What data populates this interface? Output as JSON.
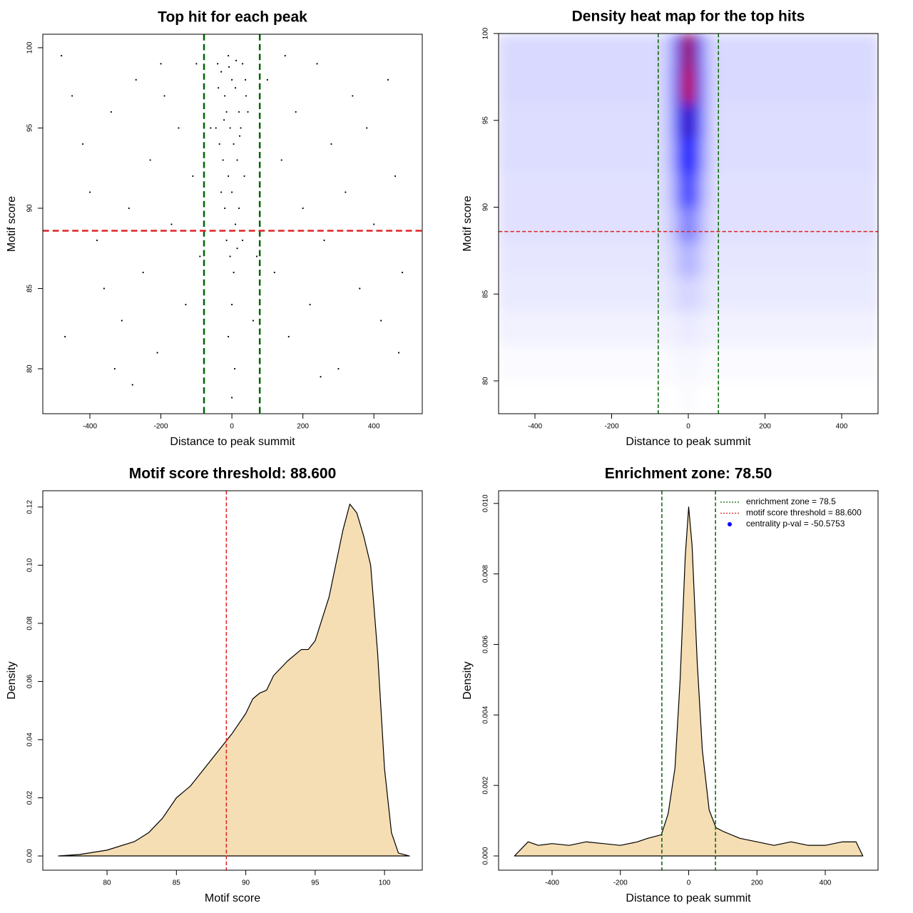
{
  "chart_data": [
    {
      "type": "scatter",
      "title": "Top hit for each peak",
      "x_label": "Distance to peak summit",
      "y_label": "Motif score",
      "xlim": [
        -532.6,
        536.2
      ],
      "ylim": [
        77.2,
        100.84
      ],
      "xticks": [
        -400,
        -200,
        0,
        200,
        400
      ],
      "yticks": [
        80,
        85,
        90,
        95,
        100
      ],
      "color": "#000000",
      "ref_line_width": 2.5,
      "reference_lines": [
        {
          "axis": "x",
          "value": -78.5,
          "color": "#006400"
        },
        {
          "axis": "x",
          "value": 78.5,
          "color": "#006400"
        },
        {
          "axis": "y",
          "value": 88.6,
          "color": "#dd2222"
        }
      ],
      "x": [
        -480,
        -450,
        -420,
        -400,
        -380,
        -360,
        -340,
        -310,
        -290,
        -270,
        -250,
        -230,
        -210,
        -190,
        -170,
        -150,
        -130,
        -110,
        -100,
        -90,
        100,
        120,
        140,
        160,
        180,
        200,
        220,
        240,
        260,
        280,
        300,
        320,
        340,
        360,
        380,
        400,
        420,
        440,
        460,
        480,
        -470,
        -330,
        -280,
        250,
        470,
        -200,
        150,
        -60,
        70,
        60,
        -40,
        -30,
        -20,
        -10,
        0,
        10,
        20,
        30,
        40,
        -45,
        -35,
        -25,
        -15,
        -5,
        5,
        15,
        25,
        35,
        45,
        -30,
        -20,
        -10,
        0,
        10,
        20,
        30,
        -15,
        -5,
        5,
        15,
        0,
        -10,
        8,
        0,
        -38,
        38,
        -8,
        12,
        -22,
        22
      ],
      "y": [
        99.5,
        97,
        94,
        91,
        88,
        85,
        96,
        83,
        90,
        98,
        86,
        93,
        81,
        97,
        89,
        95,
        84,
        92,
        99,
        87,
        98,
        86,
        93,
        82,
        96,
        90,
        84,
        99,
        88,
        94,
        80,
        91,
        97,
        85,
        95,
        89,
        83,
        98,
        92,
        86,
        82,
        80,
        79,
        79.5,
        81,
        99,
        99.5,
        95,
        87,
        83,
        99,
        98.5,
        97,
        99.5,
        98,
        97.5,
        96,
        99,
        97,
        95,
        94,
        93,
        96,
        95,
        94,
        93,
        95,
        92,
        96,
        91,
        90,
        92,
        91,
        89,
        90,
        88,
        88,
        87,
        86,
        87.5,
        84,
        82,
        80,
        78.2,
        97.5,
        98,
        98.8,
        99.2,
        95.5,
        94.5
      ]
    },
    {
      "type": "heatmap",
      "title": "Density heat map for the top hits",
      "x_label": "Distance to peak summit",
      "y_label": "Motif score",
      "xlim": [
        -494.9,
        494.9
      ],
      "ylim": [
        78.11,
        100
      ],
      "xticks": [
        -400,
        -200,
        0,
        200,
        400
      ],
      "yticks": [
        80,
        85,
        90,
        95,
        100
      ],
      "ref_line_width": 1.5,
      "reference_lines": [
        {
          "axis": "x",
          "value": -78.5,
          "color": "#006400"
        },
        {
          "axis": "x",
          "value": 78.5,
          "color": "#006400"
        },
        {
          "axis": "y",
          "value": 88.6,
          "color": "#dd2222"
        }
      ],
      "color_stops": [
        {
          "value": 0,
          "color": "#ffffff"
        },
        {
          "value": 0.6,
          "color": "#0000ff"
        },
        {
          "value": 1,
          "color": "#ff0000"
        }
      ],
      "x_edges": [
        -500,
        -100,
        -60,
        -40,
        -20,
        0,
        20,
        40,
        60,
        100,
        500
      ],
      "y_edges": [
        78,
        80,
        82,
        84,
        86,
        88,
        90,
        92,
        94,
        96,
        98,
        100
      ],
      "z": [
        [
          0,
          0,
          0,
          0,
          0.01,
          0.01,
          0,
          0,
          0,
          0
        ],
        [
          0.01,
          0.01,
          0.01,
          0.02,
          0.02,
          0.02,
          0.02,
          0.01,
          0.01,
          0.01
        ],
        [
          0.03,
          0.03,
          0.03,
          0.04,
          0.05,
          0.05,
          0.04,
          0.03,
          0.03,
          0.03
        ],
        [
          0.05,
          0.05,
          0.06,
          0.08,
          0.1,
          0.1,
          0.08,
          0.06,
          0.05,
          0.05
        ],
        [
          0.06,
          0.06,
          0.08,
          0.12,
          0.18,
          0.18,
          0.12,
          0.08,
          0.06,
          0.06
        ],
        [
          0.07,
          0.07,
          0.1,
          0.18,
          0.3,
          0.3,
          0.18,
          0.1,
          0.07,
          0.07
        ],
        [
          0.07,
          0.07,
          0.12,
          0.25,
          0.45,
          0.45,
          0.25,
          0.12,
          0.07,
          0.07
        ],
        [
          0.08,
          0.08,
          0.14,
          0.32,
          0.58,
          0.58,
          0.32,
          0.14,
          0.08,
          0.08
        ],
        [
          0.08,
          0.08,
          0.15,
          0.38,
          0.68,
          0.68,
          0.38,
          0.15,
          0.08,
          0.08
        ],
        [
          0.09,
          0.09,
          0.15,
          0.42,
          0.9,
          0.9,
          0.42,
          0.15,
          0.09,
          0.09
        ],
        [
          0.09,
          0.09,
          0.14,
          0.38,
          0.85,
          0.85,
          0.38,
          0.14,
          0.09,
          0.09
        ]
      ]
    },
    {
      "type": "area",
      "title": "Motif score threshold: 88.600",
      "x_label": "Motif score",
      "y_label": "Density",
      "xlim": [
        75.37,
        102.72
      ],
      "ylim": [
        -0.0049,
        0.1256
      ],
      "xticks": [
        80,
        85,
        90,
        95,
        100
      ],
      "yticks": [
        {
          "value": 0,
          "label": "0.00"
        },
        0.02,
        0.04,
        0.06,
        0.08,
        {
          "value": 0.1,
          "label": "0.10"
        },
        0.12
      ],
      "color": "#f5deb3",
      "ref_line_width": 1.5,
      "reference_lines": [
        {
          "axis": "x",
          "value": 88.6,
          "color": "#dd2222"
        }
      ],
      "x": [
        76.5,
        78,
        80,
        82,
        83,
        84,
        85,
        86,
        87,
        88,
        89,
        90,
        90.5,
        91,
        91.5,
        92,
        93,
        94,
        94.5,
        95,
        96,
        97,
        97.5,
        98,
        98.5,
        99,
        99.5,
        100,
        100.5,
        101,
        101.8
      ],
      "y": [
        0,
        0.0005,
        0.002,
        0.005,
        0.008,
        0.013,
        0.02,
        0.024,
        0.03,
        0.036,
        0.042,
        0.049,
        0.054,
        0.056,
        0.057,
        0.062,
        0.067,
        0.071,
        0.071,
        0.074,
        0.089,
        0.112,
        0.121,
        0.118,
        0.11,
        0.1,
        0.07,
        0.03,
        0.008,
        0.001,
        0
      ]
    },
    {
      "type": "area",
      "title": "Enrichment zone: 78.50",
      "x_label": "Distance to peak summit",
      "y_label": "Density",
      "xlim": [
        -556.6,
        554.5
      ],
      "ylim": [
        -0.000405,
        0.01036
      ],
      "xticks": [
        -400,
        -200,
        0,
        200,
        400
      ],
      "yticks": [
        {
          "value": 0,
          "label": "0.000"
        },
        0.002,
        0.004,
        0.006,
        0.008,
        {
          "value": 0.01,
          "label": "0.010"
        }
      ],
      "color": "#f5deb3",
      "ref_line_width": 1.5,
      "reference_lines": [
        {
          "axis": "x",
          "value": -78.5,
          "color": "#006400"
        },
        {
          "axis": "x",
          "value": 78.5,
          "color": "#006400"
        }
      ],
      "x": [
        -510,
        -490,
        -470,
        -440,
        -400,
        -350,
        -300,
        -250,
        -200,
        -150,
        -120,
        -80,
        -60,
        -40,
        -25,
        -10,
        0,
        10,
        25,
        40,
        60,
        80,
        100,
        150,
        200,
        250,
        300,
        350,
        400,
        450,
        490,
        510
      ],
      "y": [
        0,
        0.0002,
        0.0004,
        0.0003,
        0.00035,
        0.0003,
        0.0004,
        0.00035,
        0.0003,
        0.0004,
        0.0005,
        0.0006,
        0.0012,
        0.0025,
        0.005,
        0.0085,
        0.0099,
        0.0088,
        0.0055,
        0.003,
        0.0013,
        0.0008,
        0.0007,
        0.0005,
        0.0004,
        0.0003,
        0.0004,
        0.0003,
        0.0003,
        0.0004,
        0.0004,
        0
      ],
      "legend_position": "top-right",
      "legend": [
        {
          "label": "enrichment zone = 78.5",
          "color": "#006400",
          "style": "line"
        },
        {
          "label": "motif score threshold = 88.600",
          "color": "#dd2222",
          "style": "line"
        },
        {
          "label": "centrality p-val = -50.5753",
          "color": "#0000ff",
          "style": "point"
        }
      ]
    }
  ]
}
